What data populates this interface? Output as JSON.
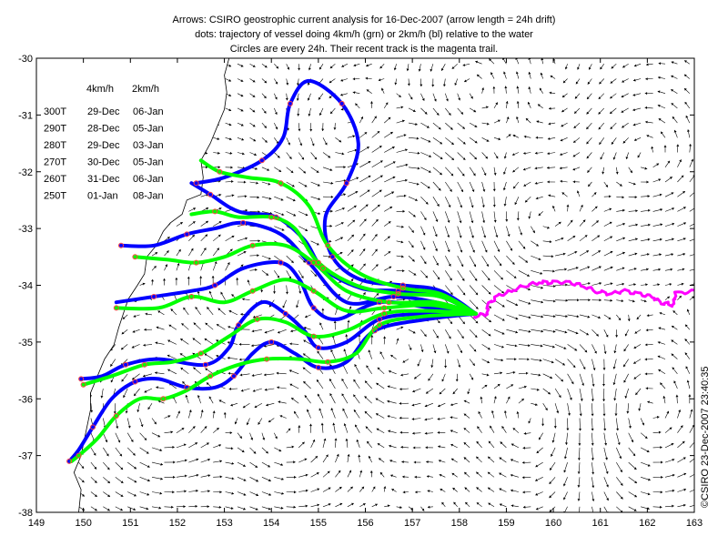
{
  "chart_data": {
    "type": "map-quiver",
    "title_lines": [
      "Arrows: CSIRO geostrophic current analysis for 16-Dec-2007 (arrow length = 24h drift)",
      "dots: trajectory of vessel doing 4km/h (grn) or 2km/h (bl) relative to the water",
      "Circles are every 24h. Their recent track is the magenta trail."
    ],
    "xlim": [
      149,
      163
    ],
    "ylim": [
      -38,
      -30
    ],
    "x_ticks": [
      149,
      150,
      151,
      152,
      153,
      154,
      155,
      156,
      157,
      158,
      159,
      160,
      161,
      162,
      163
    ],
    "y_ticks": [
      -30,
      -31,
      -32,
      -33,
      -34,
      -35,
      -36,
      -37,
      -38
    ],
    "credit": "©CSIRO 23-Dec-2007 23:40:35",
    "legend_table": {
      "headers": [
        "",
        "4km/h",
        "2km/h"
      ],
      "rows": [
        [
          "300T",
          "29-Dec",
          "06-Jan"
        ],
        [
          "290T",
          "28-Dec",
          "05-Jan"
        ],
        [
          "280T",
          "29-Dec",
          "03-Jan"
        ],
        [
          "270T",
          "30-Dec",
          "05-Jan"
        ],
        [
          "260T",
          "31-Dec",
          "06-Jan"
        ],
        [
          "250T",
          "01-Jan",
          "08-Jan"
        ]
      ]
    },
    "colors": {
      "slow_track": "#0000ff",
      "fast_track": "#00ff00",
      "recent_track": "#ff00ff",
      "daily_circle": "#ff4040",
      "arrows": "#000000",
      "coast": "#000000"
    },
    "start_point": [
      158.35,
      -34.5
    ],
    "series": [
      {
        "color": "blue",
        "points": [
          [
            158.35,
            -34.5
          ],
          [
            157.6,
            -34.1
          ],
          [
            156.8,
            -34.0
          ],
          [
            155.9,
            -33.9
          ],
          [
            155.3,
            -33.5
          ],
          [
            155.15,
            -32.8
          ],
          [
            155.6,
            -32.2
          ],
          [
            155.85,
            -31.5
          ],
          [
            155.5,
            -30.8
          ],
          [
            154.8,
            -30.4
          ],
          [
            154.4,
            -30.8
          ],
          [
            154.25,
            -31.4
          ],
          [
            153.8,
            -31.8
          ],
          [
            153.0,
            -32.1
          ],
          [
            152.4,
            -32.2
          ]
        ]
      },
      {
        "color": "blue",
        "points": [
          [
            158.35,
            -34.5
          ],
          [
            157.6,
            -34.2
          ],
          [
            156.7,
            -34.1
          ],
          [
            155.9,
            -34.05
          ],
          [
            155.1,
            -33.7
          ],
          [
            154.7,
            -33.2
          ],
          [
            154.1,
            -32.8
          ],
          [
            153.3,
            -32.7
          ],
          [
            152.7,
            -32.4
          ],
          [
            152.3,
            -32.2
          ]
        ]
      },
      {
        "color": "blue",
        "points": [
          [
            158.35,
            -34.5
          ],
          [
            157.5,
            -34.3
          ],
          [
            156.6,
            -34.2
          ],
          [
            155.6,
            -34.3
          ],
          [
            154.8,
            -33.6
          ],
          [
            154.2,
            -33.1
          ],
          [
            153.4,
            -32.9
          ],
          [
            152.8,
            -33.0
          ],
          [
            152.2,
            -33.1
          ],
          [
            151.5,
            -33.3
          ],
          [
            150.8,
            -33.3
          ]
        ]
      },
      {
        "color": "blue",
        "points": [
          [
            158.35,
            -34.5
          ],
          [
            157.4,
            -34.4
          ],
          [
            156.3,
            -34.3
          ],
          [
            155.4,
            -34.6
          ],
          [
            154.9,
            -34.4
          ],
          [
            154.6,
            -33.9
          ],
          [
            154.2,
            -33.6
          ],
          [
            153.4,
            -33.7
          ],
          [
            152.8,
            -34.0
          ],
          [
            152.3,
            -34.1
          ],
          [
            151.5,
            -34.2
          ],
          [
            150.7,
            -34.3
          ]
        ]
      },
      {
        "color": "blue",
        "points": [
          [
            158.35,
            -34.5
          ],
          [
            157.2,
            -34.5
          ],
          [
            156.3,
            -34.6
          ],
          [
            155.6,
            -35.0
          ],
          [
            155.0,
            -35.1
          ],
          [
            154.7,
            -34.8
          ],
          [
            154.3,
            -34.5
          ],
          [
            153.8,
            -34.3
          ],
          [
            153.3,
            -34.7
          ],
          [
            153.1,
            -35.1
          ],
          [
            152.6,
            -35.4
          ],
          [
            151.6,
            -35.3
          ],
          [
            150.9,
            -35.4
          ],
          [
            150.4,
            -35.6
          ],
          [
            149.95,
            -35.65
          ]
        ]
      },
      {
        "color": "blue",
        "points": [
          [
            158.35,
            -34.5
          ],
          [
            157.3,
            -34.6
          ],
          [
            156.2,
            -34.8
          ],
          [
            155.6,
            -35.35
          ],
          [
            155.0,
            -35.45
          ],
          [
            154.5,
            -35.2
          ],
          [
            154.0,
            -35.0
          ],
          [
            153.6,
            -35.2
          ],
          [
            153.2,
            -35.6
          ],
          [
            152.8,
            -35.8
          ],
          [
            152.2,
            -35.8
          ],
          [
            151.6,
            -35.65
          ],
          [
            151.1,
            -35.7
          ],
          [
            150.6,
            -36.0
          ],
          [
            150.2,
            -36.5
          ],
          [
            149.9,
            -36.9
          ],
          [
            149.7,
            -37.1
          ]
        ]
      },
      {
        "color": "green",
        "points": [
          [
            158.35,
            -34.5
          ],
          [
            157.6,
            -34.15
          ],
          [
            156.8,
            -34.05
          ],
          [
            155.9,
            -33.8
          ],
          [
            155.2,
            -33.3
          ],
          [
            154.8,
            -32.6
          ],
          [
            154.2,
            -32.2
          ],
          [
            153.5,
            -32.1
          ],
          [
            152.9,
            -32.0
          ],
          [
            152.5,
            -31.8
          ]
        ]
      },
      {
        "color": "green",
        "points": [
          [
            158.35,
            -34.5
          ],
          [
            157.6,
            -34.2
          ],
          [
            156.7,
            -34.15
          ],
          [
            155.8,
            -34.0
          ],
          [
            155.0,
            -33.6
          ],
          [
            154.5,
            -33.0
          ],
          [
            154.0,
            -32.8
          ],
          [
            153.3,
            -32.8
          ],
          [
            152.8,
            -32.7
          ],
          [
            152.3,
            -32.75
          ]
        ]
      },
      {
        "color": "green",
        "points": [
          [
            158.35,
            -34.5
          ],
          [
            157.5,
            -34.3
          ],
          [
            156.5,
            -34.3
          ],
          [
            155.6,
            -34.1
          ],
          [
            154.9,
            -33.6
          ],
          [
            154.3,
            -33.3
          ],
          [
            153.6,
            -33.3
          ],
          [
            153.0,
            -33.5
          ],
          [
            152.4,
            -33.6
          ],
          [
            151.8,
            -33.55
          ],
          [
            151.1,
            -33.5
          ]
        ]
      },
      {
        "color": "green",
        "points": [
          [
            158.35,
            -34.5
          ],
          [
            157.4,
            -34.35
          ],
          [
            156.4,
            -34.4
          ],
          [
            155.6,
            -34.45
          ],
          [
            154.9,
            -34.1
          ],
          [
            154.3,
            -33.9
          ],
          [
            153.6,
            -34.1
          ],
          [
            153.0,
            -34.3
          ],
          [
            152.3,
            -34.2
          ],
          [
            151.6,
            -34.4
          ],
          [
            150.7,
            -34.4
          ]
        ]
      },
      {
        "color": "green",
        "points": [
          [
            158.35,
            -34.5
          ],
          [
            157.3,
            -34.45
          ],
          [
            156.4,
            -34.5
          ],
          [
            155.6,
            -34.8
          ],
          [
            154.9,
            -34.9
          ],
          [
            154.3,
            -34.65
          ],
          [
            153.7,
            -34.6
          ],
          [
            153.1,
            -34.9
          ],
          [
            152.5,
            -35.2
          ],
          [
            151.9,
            -35.35
          ],
          [
            151.3,
            -35.4
          ],
          [
            150.6,
            -35.6
          ],
          [
            150.0,
            -35.75
          ]
        ]
      },
      {
        "color": "green",
        "points": [
          [
            158.35,
            -34.5
          ],
          [
            157.2,
            -34.55
          ],
          [
            156.3,
            -34.7
          ],
          [
            155.8,
            -35.2
          ],
          [
            155.2,
            -35.35
          ],
          [
            154.6,
            -35.3
          ],
          [
            153.9,
            -35.3
          ],
          [
            153.3,
            -35.4
          ],
          [
            152.7,
            -35.6
          ],
          [
            152.2,
            -35.85
          ],
          [
            151.7,
            -36.0
          ],
          [
            151.2,
            -36.0
          ],
          [
            150.7,
            -36.3
          ],
          [
            150.3,
            -36.7
          ],
          [
            149.9,
            -37.0
          ],
          [
            149.75,
            -37.1
          ]
        ]
      }
    ],
    "recent_track": [
      [
        158.3,
        -34.55
      ],
      [
        158.6,
        -34.5
      ],
      [
        158.6,
        -34.35
      ],
      [
        158.8,
        -34.2
      ],
      [
        159.1,
        -34.1
      ],
      [
        159.4,
        -34.0
      ],
      [
        159.7,
        -33.95
      ],
      [
        160.0,
        -33.95
      ],
      [
        160.3,
        -33.95
      ],
      [
        160.6,
        -34.0
      ],
      [
        160.9,
        -34.1
      ],
      [
        161.2,
        -34.15
      ],
      [
        161.5,
        -34.1
      ],
      [
        161.8,
        -34.15
      ],
      [
        162.1,
        -34.2
      ],
      [
        162.3,
        -34.3
      ],
      [
        162.55,
        -34.35
      ],
      [
        162.6,
        -34.15
      ],
      [
        163.0,
        -34.1
      ]
    ]
  }
}
